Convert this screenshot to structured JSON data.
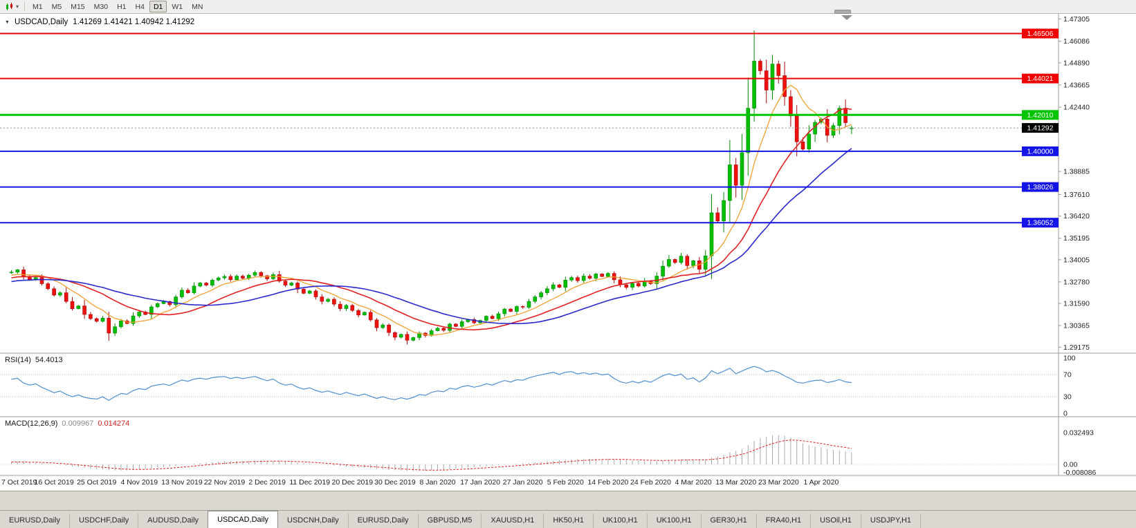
{
  "toolbar": {
    "timeframes": [
      {
        "label": "M1",
        "active": false
      },
      {
        "label": "M5",
        "active": false
      },
      {
        "label": "M15",
        "active": false
      },
      {
        "label": "M30",
        "active": false
      },
      {
        "label": "H1",
        "active": false
      },
      {
        "label": "H4",
        "active": false
      },
      {
        "label": "D1",
        "active": true
      },
      {
        "label": "W1",
        "active": false
      },
      {
        "label": "MN",
        "active": false
      }
    ]
  },
  "header": {
    "symbol": "USDCAD,Daily",
    "ohlc": "1.41269 1.41421 1.40942 1.41292"
  },
  "tabs": {
    "items": [
      {
        "label": "EURUSD,Daily",
        "active": false
      },
      {
        "label": "USDCHF,Daily",
        "active": false
      },
      {
        "label": "AUDUSD,Daily",
        "active": false
      },
      {
        "label": "USDCAD,Daily",
        "active": true
      },
      {
        "label": "USDCNH,Daily",
        "active": false
      },
      {
        "label": "EURUSD,Daily",
        "active": false
      },
      {
        "label": "GBPUSD,M5",
        "active": false
      },
      {
        "label": "XAUUSD,H1",
        "active": false
      },
      {
        "label": "HK50,H1",
        "active": false
      },
      {
        "label": "UK100,H1",
        "active": false
      },
      {
        "label": "UK100,H1",
        "active": false
      },
      {
        "label": "GER30,H1",
        "active": false
      },
      {
        "label": "FRA40,H1",
        "active": false
      },
      {
        "label": "USOil,H1",
        "active": false
      },
      {
        "label": "USDJPY,H1",
        "active": false
      }
    ]
  },
  "chart_data": {
    "type": "candlestick",
    "symbol": "USDCAD",
    "period": "Daily",
    "scale": {
      "max": 1.4752,
      "min": 1.2888
    },
    "price_axis_labels": [
      "1.47305",
      "1.46086",
      "1.44890",
      "1.43665",
      "1.42440",
      "1.38885",
      "1.37610",
      "1.36420",
      "1.35195",
      "1.34005",
      "1.32780",
      "1.31590",
      "1.30365",
      "1.29175"
    ],
    "date_labels": [
      "7 Oct 2019",
      "16 Oct 2019",
      "25 Oct 2019",
      "4 Nov 2019",
      "13 Nov 2019",
      "22 Nov 2019",
      "2 Dec 2019",
      "11 Dec 2019",
      "20 Dec 2019",
      "30 Dec 2019",
      "8 Jan 2020",
      "17 Jan 2020",
      "27 Jan 2020",
      "5 Feb 2020",
      "14 Feb 2020",
      "24 Feb 2020",
      "4 Mar 2020",
      "13 Mar 2020",
      "23 Mar 2020",
      "1 Apr 2020"
    ],
    "label_every": 7,
    "colors": {
      "bull": "#00bf00",
      "bull_stroke": "#008a00",
      "bear": "#ef1010",
      "bear_stroke": "#a80808"
    },
    "hlines": [
      {
        "value": 1.46506,
        "label": "1.46506",
        "color": "#f00000",
        "width": 2
      },
      {
        "value": 1.44021,
        "label": "1.44021",
        "color": "#f00000",
        "width": 2
      },
      {
        "value": 1.4201,
        "label": "1.42010",
        "color": "#00c400",
        "width": 3
      },
      {
        "value": 1.4,
        "label": "1.40000",
        "color": "#1414e6",
        "width": 2
      },
      {
        "value": 1.38026,
        "label": "1.38026",
        "color": "#1414e6",
        "width": 2
      },
      {
        "value": 1.36052,
        "label": "1.36052",
        "color": "#1414e6",
        "width": 2
      }
    ],
    "current_price": {
      "value": 1.41292,
      "label": "1.41292",
      "badge_color": "#000000"
    },
    "history_closes": [
      1.3155,
      1.317,
      1.3148,
      1.3182,
      1.3195,
      1.3178,
      1.3205,
      1.3188,
      1.3215,
      1.3232,
      1.321,
      1.3195,
      1.3228,
      1.3212,
      1.324,
      1.3255,
      1.3238,
      1.3262,
      1.3245,
      1.3228,
      1.325,
      1.327,
      1.3248,
      1.3275,
      1.3258,
      1.3282,
      1.3298,
      1.327,
      1.3292,
      1.331,
      1.3288,
      1.3305,
      1.3285,
      1.3308,
      1.3322,
      1.33,
      1.3315,
      1.3295,
      1.3318,
      1.333
    ],
    "closes": [
      1.3332,
      1.3345,
      1.3308,
      1.329,
      1.3302,
      1.3268,
      1.324,
      1.3205,
      1.3218,
      1.317,
      1.313,
      1.3145,
      1.3098,
      1.3075,
      1.306,
      1.3078,
      1.2995,
      1.303,
      1.3062,
      1.3048,
      1.309,
      1.3112,
      1.3098,
      1.314,
      1.3158,
      1.317,
      1.3152,
      1.3195,
      1.3232,
      1.3218,
      1.3255,
      1.3272,
      1.326,
      1.3288,
      1.33,
      1.3308,
      1.329,
      1.331,
      1.3298,
      1.3315,
      1.333,
      1.3312,
      1.3295,
      1.3318,
      1.3282,
      1.326,
      1.3272,
      1.3238,
      1.3215,
      1.3228,
      1.3195,
      1.317,
      1.3182,
      1.3155,
      1.313,
      1.3148,
      1.312,
      1.3095,
      1.311,
      1.3068,
      1.3025,
      1.304,
      1.2998,
      1.2972,
      1.2988,
      1.2955,
      1.297,
      1.2995,
      1.2982,
      1.3008,
      1.3022,
      1.301,
      1.3045,
      1.3032,
      1.3058,
      1.307,
      1.3052,
      1.3065,
      1.3088,
      1.3075,
      1.3102,
      1.3128,
      1.3115,
      1.3142,
      1.3138,
      1.317,
      1.3195,
      1.3218,
      1.324,
      1.3262,
      1.3248,
      1.3288,
      1.3302,
      1.3285,
      1.331,
      1.3298,
      1.3322,
      1.3308,
      1.3325,
      1.329,
      1.3262,
      1.3248,
      1.327,
      1.3255,
      1.3282,
      1.3268,
      1.331,
      1.3365,
      1.3402,
      1.3385,
      1.342,
      1.3368,
      1.3395,
      1.3348,
      1.3422,
      1.366,
      1.3615,
      1.3728,
      1.3925,
      1.3812,
      1.3992,
      1.4238,
      1.4498,
      1.4445,
      1.4338,
      1.4482,
      1.4418,
      1.4302,
      1.4195,
      1.4052,
      1.4012,
      1.4095,
      1.416,
      1.4178,
      1.4088,
      1.4142,
      1.4238,
      1.4158,
      1.41292
    ],
    "overrides": {
      "16": {
        "low": 1.2952
      },
      "122": {
        "high": 1.4668
      },
      "129": {
        "low": 1.3972
      },
      "136": {
        "high": 1.4252
      },
      "138": {
        "open": 1.41269,
        "high": 1.41421,
        "low": 1.40942
      }
    },
    "moving_averages": [
      {
        "name": "fast-ma",
        "period": 8,
        "color": "#f0a030",
        "width": 1.3
      },
      {
        "name": "mid-ma",
        "period": 17,
        "color": "#e02020",
        "width": 1.6
      },
      {
        "name": "slow-ma",
        "period": 28,
        "color": "#2828cc",
        "width": 1.6
      }
    ],
    "indicators": {
      "rsi": {
        "label": "RSI(14)",
        "value": "54.4013",
        "period": 14,
        "color": "#4f8fd0",
        "levels": [
          70,
          30
        ],
        "axis_labels": [
          "100",
          "70",
          "30",
          "0"
        ]
      },
      "macd": {
        "label": "MACD(12,26,9)",
        "value_main": "0.009967",
        "value_signal": "0.014274",
        "fast": 12,
        "slow": 26,
        "signal": 9,
        "bar_color": "#a8a8a8",
        "signal_color": "#e02020",
        "axis_labels": [
          "0.032493",
          "0.00",
          "-0.008086"
        ]
      }
    }
  }
}
